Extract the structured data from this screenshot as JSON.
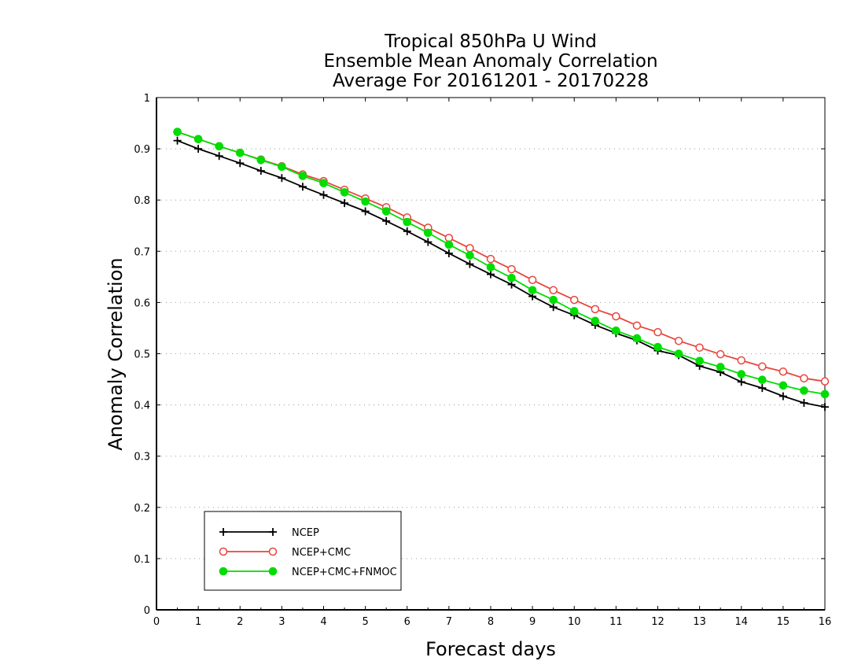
{
  "chart_data": {
    "type": "line",
    "title": [
      "Tropical 850hPa U Wind",
      "Ensemble Mean Anomaly Correlation",
      "Average For 20161201 - 20170228"
    ],
    "xlabel": "Forecast days",
    "ylabel": "Anomaly Correlation",
    "xlim": [
      0,
      16
    ],
    "ylim": [
      0,
      1
    ],
    "x_ticks": [
      0,
      1,
      2,
      3,
      4,
      5,
      6,
      7,
      8,
      9,
      10,
      11,
      12,
      13,
      14,
      15,
      16
    ],
    "y_ticks": [
      0,
      0.1,
      0.2,
      0.3,
      0.4,
      0.5,
      0.6,
      0.7,
      0.8,
      0.9,
      1
    ],
    "y_tick_labels": [
      "0",
      "0.1",
      "0.2",
      "0.3",
      "0.4",
      "0.5",
      "0.6",
      "0.7",
      "0.8",
      "0.9",
      "1"
    ],
    "grid": "horizontal dotted",
    "legend_position": "bottom-left",
    "x": [
      0.5,
      1.0,
      1.5,
      2.0,
      2.5,
      3.0,
      3.5,
      4.0,
      4.5,
      5.0,
      5.5,
      6.0,
      6.5,
      7.0,
      7.5,
      8.0,
      8.5,
      9.0,
      9.5,
      10.0,
      10.5,
      11.0,
      11.5,
      12.0,
      12.5,
      13.0,
      13.5,
      14.0,
      14.5,
      15.0,
      15.5,
      16.0
    ],
    "series": [
      {
        "name": "NCEP",
        "color": "#000000",
        "marker": "plus",
        "values": [
          0.916,
          0.9,
          0.886,
          0.872,
          0.857,
          0.843,
          0.826,
          0.81,
          0.794,
          0.778,
          0.759,
          0.739,
          0.718,
          0.696,
          0.675,
          0.655,
          0.635,
          0.612,
          0.591,
          0.575,
          0.556,
          0.54,
          0.526,
          0.506,
          0.497,
          0.476,
          0.464,
          0.445,
          0.433,
          0.417,
          0.404,
          0.396
        ]
      },
      {
        "name": "NCEP+CMC",
        "color": "#e8453c",
        "marker": "open-circle",
        "values": [
          0.933,
          0.919,
          0.905,
          0.892,
          0.879,
          0.866,
          0.85,
          0.837,
          0.82,
          0.803,
          0.786,
          0.766,
          0.746,
          0.726,
          0.706,
          0.685,
          0.665,
          0.644,
          0.624,
          0.605,
          0.587,
          0.573,
          0.555,
          0.542,
          0.525,
          0.512,
          0.499,
          0.487,
          0.475,
          0.465,
          0.452,
          0.446
        ]
      },
      {
        "name": "NCEP+CMC+FNMOC",
        "color": "#00dd00",
        "marker": "filled-circle",
        "values": [
          0.933,
          0.919,
          0.905,
          0.892,
          0.878,
          0.865,
          0.847,
          0.833,
          0.815,
          0.797,
          0.778,
          0.757,
          0.736,
          0.713,
          0.692,
          0.669,
          0.648,
          0.624,
          0.605,
          0.583,
          0.564,
          0.545,
          0.53,
          0.513,
          0.5,
          0.486,
          0.474,
          0.46,
          0.449,
          0.438,
          0.428,
          0.421
        ]
      }
    ]
  }
}
